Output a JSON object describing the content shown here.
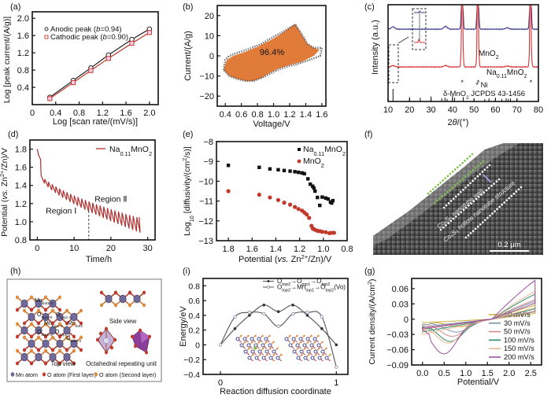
{
  "figure": {
    "panels": [
      "(a)",
      "(b)",
      "(c)",
      "(d)",
      "(e)",
      "(f)",
      "(g)",
      "(h)",
      "(i)"
    ]
  },
  "chart_data": [
    {
      "id": "a",
      "label": "(a)",
      "type": "line",
      "xlabel": "Log [scan rate/(mV/s)]",
      "ylabel": "Log [peak current/(A/g)]",
      "xlim": [
        0,
        2.15
      ],
      "ylim": [
        0,
        2.15
      ],
      "xticks": [
        "0",
        "0.4",
        "0.8",
        "1.2",
        "1.6",
        "2.0"
      ],
      "xtick_values": [
        0,
        0.4,
        0.8,
        1.2,
        1.6,
        2.0
      ],
      "yticks": [
        "0.4",
        "0.8",
        "1.2",
        "1.6",
        "2.0"
      ],
      "ytick_values": [
        0.4,
        0.8,
        1.2,
        1.6,
        2.0
      ],
      "x": [
        0.3,
        0.7,
        1.0,
        1.3,
        1.7,
        2.0
      ],
      "series": [
        {
          "name": "Anodic peak (b=0.94)",
          "legend_prefix": "Anodic peak (",
          "legend_italic": "b",
          "legend_suffix": "=0.94)",
          "marker": "circle",
          "color": "#222222",
          "values": [
            0.17,
            0.56,
            0.85,
            1.15,
            1.51,
            1.75
          ]
        },
        {
          "name": "Cathodic peak (b=0.90)",
          "legend_prefix": "Cathodic peak (",
          "legend_italic": "b",
          "legend_suffix": "=0.90)",
          "marker": "square",
          "color": "#c0392b",
          "values": [
            0.14,
            0.51,
            0.79,
            1.07,
            1.42,
            1.67
          ]
        }
      ],
      "legend": "top-left"
    },
    {
      "id": "b",
      "label": "(b)",
      "type": "area",
      "xlabel": "Voltage/V",
      "ylabel": "Current/(A/g)",
      "xlim": [
        0.3,
        1.65
      ],
      "ylim": [
        -25,
        25
      ],
      "xticks": [
        "0.4",
        "0.6",
        "0.8",
        "1.0",
        "1.2",
        "1.4",
        "1.6"
      ],
      "xtick_values": [
        0.4,
        0.6,
        0.8,
        1.0,
        1.2,
        1.4,
        1.6
      ],
      "yticks": [
        "20",
        "10",
        "0",
        "-10",
        "-20"
      ],
      "ytick_values": [
        20,
        10,
        0,
        -10,
        -20
      ],
      "annotation": "96.4%",
      "fill_color": "#e07b39",
      "outer_curve": [
        [
          0.38,
          -7
        ],
        [
          0.4,
          -2
        ],
        [
          0.45,
          0
        ],
        [
          0.55,
          1.5
        ],
        [
          0.7,
          3.5
        ],
        [
          0.85,
          6
        ],
        [
          1.0,
          9.5
        ],
        [
          1.1,
          11.5
        ],
        [
          1.2,
          14
        ],
        [
          1.27,
          15.5
        ],
        [
          1.33,
          12
        ],
        [
          1.42,
          6
        ],
        [
          1.5,
          4
        ],
        [
          1.6,
          4
        ],
        [
          1.58,
          0
        ],
        [
          1.45,
          -2
        ],
        [
          1.3,
          -4
        ],
        [
          1.15,
          -5.5
        ],
        [
          1.05,
          -7
        ],
        [
          0.95,
          -9
        ],
        [
          0.85,
          -11
        ],
        [
          0.75,
          -12.5
        ],
        [
          0.65,
          -12.5
        ],
        [
          0.55,
          -11.5
        ],
        [
          0.45,
          -10
        ],
        [
          0.38,
          -7
        ]
      ],
      "filled_curve": [
        [
          0.38,
          -7
        ],
        [
          0.42,
          -2
        ],
        [
          0.5,
          0
        ],
        [
          0.65,
          2
        ],
        [
          0.8,
          4.5
        ],
        [
          0.95,
          7.5
        ],
        [
          1.1,
          11
        ],
        [
          1.2,
          14
        ],
        [
          1.27,
          16
        ],
        [
          1.33,
          12
        ],
        [
          1.42,
          6
        ],
        [
          1.5,
          4
        ],
        [
          1.57,
          3
        ],
        [
          1.5,
          0
        ],
        [
          1.35,
          -3
        ],
        [
          1.2,
          -4.5
        ],
        [
          1.05,
          -6.5
        ],
        [
          0.95,
          -8.5
        ],
        [
          0.85,
          -11
        ],
        [
          0.75,
          -12.5
        ],
        [
          0.65,
          -12.5
        ],
        [
          0.55,
          -11.5
        ],
        [
          0.45,
          -10
        ],
        [
          0.38,
          -7
        ]
      ]
    },
    {
      "id": "c",
      "label": "(c)",
      "type": "line",
      "xlabel": "2θ/(°)",
      "ylabel": "Intensity (a.u.)",
      "xlim": [
        10,
        80
      ],
      "xticks": [
        "10",
        "20",
        "30",
        "40",
        "50",
        "60",
        "70",
        "80"
      ],
      "xtick_values": [
        10,
        20,
        30,
        40,
        50,
        60,
        70,
        80
      ],
      "series": [
        {
          "name": "MnO2",
          "label_main": "MnO",
          "label_sub": "2",
          "color": "#3a3a8c",
          "baseline": 0.62,
          "peaks": [
            [
              12.3,
              0.05
            ],
            [
              36.8,
              0.06
            ],
            [
              44.5,
              1.0
            ],
            [
              51.8,
              1.0
            ],
            [
              65.5,
              0.03
            ],
            [
              76.3,
              1.0
            ]
          ]
        },
        {
          "name": "Na0.11MnO2",
          "label_main": "Na",
          "label_sub": "0.11",
          "label_tail": "MnO",
          "label_sub2": "2",
          "color": "#d63030",
          "baseline": 0.22,
          "peaks": [
            [
              12.3,
              0.03
            ],
            [
              36.8,
              0.03
            ],
            [
              44.5,
              1.0
            ],
            [
              51.8,
              1.0
            ],
            [
              65.5,
              0.02
            ],
            [
              76.3,
              1.0
            ]
          ]
        }
      ],
      "ni_marks": [
        44.5,
        52.0,
        76.5
      ],
      "ni_label": "* Ni",
      "reference_label": "δ-MnO",
      "reference_sub": "2",
      "reference_tail": " JCPDS 43-1456",
      "reference_lines": [
        [
          12.3,
          1.0
        ],
        [
          20,
          0.35
        ],
        [
          25,
          0.3
        ],
        [
          30,
          0.4
        ],
        [
          35,
          0.25
        ],
        [
          36.5,
          0.3
        ],
        [
          37.5,
          0.2
        ],
        [
          40,
          0.45
        ],
        [
          41,
          0.3
        ],
        [
          45,
          0.35
        ],
        [
          50,
          0.25
        ],
        [
          55,
          0.2
        ],
        [
          57,
          0.25
        ],
        [
          60,
          0.3
        ],
        [
          63,
          0.2
        ],
        [
          65,
          0.25
        ],
        [
          66,
          0.2
        ],
        [
          67,
          0.25
        ],
        [
          70,
          0.2
        ]
      ]
    },
    {
      "id": "d",
      "label": "(d)",
      "type": "line",
      "xlabel": "Time/h",
      "ylabel": "Potential (vs. Zn2+/Zn)/V",
      "xlim": [
        -2,
        32
      ],
      "ylim": [
        0.8,
        1.9
      ],
      "xticks": [
        "0",
        "10",
        "20",
        "30"
      ],
      "xtick_values": [
        0,
        10,
        20,
        30
      ],
      "yticks": [
        "0.8",
        "1.0",
        "1.2",
        "1.4",
        "1.6",
        "1.8"
      ],
      "ytick_values": [
        0.8,
        1.0,
        1.2,
        1.4,
        1.6,
        1.8
      ],
      "series": [
        {
          "name": "Na0.11MnO2",
          "label_main": "Na",
          "label_sub": "0.11",
          "label_tail": "MnO",
          "label_sub2": "2",
          "color": "#b03030",
          "pulses": 27,
          "start": 1.8,
          "end_upper": 1.05,
          "end_lower": 0.88
        }
      ],
      "divider_x": 14,
      "annotations": [
        {
          "text": "Region Ⅰ",
          "x": 6.5,
          "y": 1.09
        },
        {
          "text": "Region Ⅱ",
          "x": 20,
          "y": 1.22
        }
      ]
    },
    {
      "id": "e",
      "label": "(e)",
      "type": "scatter",
      "xlabel": "Potential (vs. Zn2+/Zn)/V",
      "ylabel": "Log10 [diffusivity/(cm2/s)]",
      "xlim": [
        1.9,
        0.8
      ],
      "ylim": [
        -13,
        -8
      ],
      "xticks": [
        "1.8",
        "1.6",
        "1.4",
        "1.2",
        "1.0",
        "0.8"
      ],
      "xtick_values": [
        1.8,
        1.6,
        1.4,
        1.2,
        1.0,
        0.8
      ],
      "yticks": [
        "-8",
        "-9",
        "-10",
        "-11",
        "-12",
        "-13"
      ],
      "ytick_values": [
        -8,
        -9,
        -10,
        -11,
        -12,
        -13
      ],
      "series": [
        {
          "name": "Na0.11MnO2",
          "label_main": "Na",
          "label_sub": "0.11",
          "label_tail": "MnO",
          "label_sub2": "2",
          "marker": "square",
          "color": "#111111",
          "points": [
            [
              1.8,
              -9.2
            ],
            [
              1.54,
              -9.3
            ],
            [
              1.45,
              -9.38
            ],
            [
              1.38,
              -9.42
            ],
            [
              1.33,
              -9.46
            ],
            [
              1.28,
              -9.49
            ],
            [
              1.24,
              -9.52
            ],
            [
              1.21,
              -9.55
            ],
            [
              1.18,
              -9.58
            ],
            [
              1.16,
              -9.62
            ],
            [
              1.13,
              -9.88
            ],
            [
              1.11,
              -10.15
            ],
            [
              1.09,
              -10.25
            ],
            [
              1.08,
              -10.35
            ],
            [
              1.07,
              -10.5
            ],
            [
              1.05,
              -10.82
            ],
            [
              1.03,
              -11.22
            ],
            [
              1.01,
              -10.8
            ],
            [
              0.98,
              -10.85
            ],
            [
              0.96,
              -10.9
            ],
            [
              0.94,
              -11.05
            ],
            [
              0.93,
              -11.1
            ],
            [
              0.92,
              -10.98
            ]
          ]
        },
        {
          "name": "MnO2",
          "label_main": "MnO",
          "label_sub": "2",
          "marker": "circle",
          "color": "#c0392b",
          "points": [
            [
              1.8,
              -10.5
            ],
            [
              1.54,
              -10.68
            ],
            [
              1.45,
              -10.82
            ],
            [
              1.38,
              -10.95
            ],
            [
              1.33,
              -11.08
            ],
            [
              1.28,
              -11.18
            ],
            [
              1.24,
              -11.3
            ],
            [
              1.21,
              -11.4
            ],
            [
              1.18,
              -11.48
            ],
            [
              1.16,
              -11.58
            ],
            [
              1.14,
              -11.68
            ],
            [
              1.12,
              -11.85
            ],
            [
              1.1,
              -12.25
            ],
            [
              1.09,
              -12.38
            ],
            [
              1.08,
              -12.42
            ],
            [
              1.07,
              -12.45
            ],
            [
              1.05,
              -12.5
            ],
            [
              1.03,
              -12.52
            ],
            [
              1.01,
              -12.55
            ],
            [
              0.98,
              -12.57
            ],
            [
              0.95,
              -12.62
            ],
            [
              0.93,
              -12.6
            ],
            [
              0.91,
              -12.6
            ]
          ]
        }
      ],
      "legend": "top-right"
    },
    {
      "id": "g",
      "label": "(g)",
      "type": "line",
      "xlabel": "Potential/V",
      "ylabel": "Current density/(A/cm2)",
      "xlim": [
        -0.25,
        2.75
      ],
      "ylim": [
        -0.09,
        0.08
      ],
      "xticks": [
        "0.0",
        "0.5",
        "1.0",
        "1.5",
        "2.0",
        "2.5"
      ],
      "xtick_values": [
        0,
        0.5,
        1.0,
        1.5,
        2.0,
        2.5
      ],
      "yticks": [
        "0.06",
        "0.03",
        "0",
        "-0.03",
        "-0.06",
        "-0.09"
      ],
      "ytick_values": [
        0.06,
        0.03,
        0,
        -0.03,
        -0.06,
        -0.09
      ],
      "series": [
        {
          "name": "10 mV/s",
          "color": "#c9b23a",
          "min_at": 0.9,
          "min_val": -0.012,
          "max_val": 0.025,
          "start": -0.007
        },
        {
          "name": "30 mV/s",
          "color": "#7d92a8",
          "min_at": 0.8,
          "min_val": -0.022,
          "max_val": 0.032,
          "start": -0.015
        },
        {
          "name": "50 mV/s",
          "color": "#d48a8a",
          "min_at": 0.7,
          "min_val": -0.03,
          "max_val": 0.035,
          "start": -0.02
        },
        {
          "name": "100 mV/s",
          "color": "#2e8b6e",
          "min_at": 0.65,
          "min_val": -0.04,
          "max_val": 0.045,
          "start": -0.025
        },
        {
          "name": "150 mV/s",
          "color": "#e8b890",
          "min_at": 0.6,
          "min_val": -0.043,
          "max_val": 0.05,
          "start": -0.03
        },
        {
          "name": "200 mV/s",
          "color": "#9b4fa0",
          "min_at": 0.5,
          "min_val": -0.064,
          "max_val": 0.07,
          "start": -0.018
        }
      ],
      "legend": "bottom-right"
    },
    {
      "id": "i",
      "label": "(i)",
      "type": "line",
      "xlabel": "Reaction diffusion coordinate",
      "ylabel": "Energy/eV",
      "xlim": [
        -0.15,
        1.1
      ],
      "ylim": [
        -0.4,
        0.9
      ],
      "xticks": [
        "0",
        "1"
      ],
      "xtick_values": [
        0,
        1
      ],
      "yticks": [
        "0.8",
        "0.6",
        "0.4",
        "0.2",
        "0",
        "-0.2",
        "-0.4"
      ],
      "ytick_values": [
        0.8,
        0.6,
        0.4,
        0.2,
        0,
        -0.2,
        -0.4
      ],
      "series": [
        {
          "name": "Otop2→Otop1→Otop2",
          "marker": "filled-circle",
          "color": "#333333",
          "line_color": "#555555",
          "legend_parts": [
            [
              "O",
              ""
            ],
            [
              "top2",
              "sub"
            ],
            [
              "→O",
              ""
            ],
            [
              "top1",
              "sub"
            ],
            [
              "→O",
              ""
            ],
            [
              "top2",
              "sub"
            ]
          ],
          "points": [
            [
              0,
              0
            ],
            [
              0.125,
              0.22
            ],
            [
              0.25,
              0.4
            ],
            [
              0.375,
              0.54
            ],
            [
              0.5,
              0.45
            ],
            [
              0.625,
              0.54
            ],
            [
              0.75,
              0.4
            ],
            [
              0.875,
              0.22
            ],
            [
              1.0,
              0
            ]
          ]
        },
        {
          "name": "Otop2→Mntop1→Otop2(Vo)",
          "marker": "open-circle",
          "color": "#9b7ba8",
          "line_color": "#555555",
          "legend_parts": [
            [
              "O",
              ""
            ],
            [
              "top2",
              "sub"
            ],
            [
              "→Mn",
              ""
            ],
            [
              "top1",
              "sub"
            ],
            [
              "→O",
              ""
            ],
            [
              "top2",
              "sub"
            ],
            [
              "(Vo)",
              ""
            ]
          ],
          "points": [
            [
              0,
              0
            ],
            [
              0.125,
              0.38
            ],
            [
              0.25,
              0.44
            ],
            [
              0.375,
              0.42
            ],
            [
              0.5,
              0.25
            ],
            [
              0.625,
              0.42
            ],
            [
              0.75,
              0.44
            ],
            [
              0.875,
              0.38
            ],
            [
              1.0,
              -0.3
            ]
          ]
        }
      ],
      "legend": "top-right"
    }
  ],
  "image_f": {
    "label": "(f)",
    "annotation_wall": "Co₉S₈ nanotube wall",
    "annotation_hollow": "Co₉S₈ hollow nanotube structure",
    "scale_bar": "0.2 μm"
  },
  "diagram_h": {
    "label": "(h)",
    "top_view": "Top view",
    "side_view": "Side view",
    "octahedral": "Octahedral repeating unit",
    "atom_labels": [
      "Mn",
      "O",
      "O",
      "Mn",
      "Mn",
      "O",
      "O",
      "O"
    ],
    "atom_subs": [
      "bot1-2",
      "top2-0",
      "top2-1",
      "top1-0",
      "bot1",
      "top1-0",
      "top1-1",
      "bot2-2"
    ],
    "legend": [
      {
        "text": "Mn atom",
        "color": "#6f6a9a"
      },
      {
        "text": "O atom (First layer)",
        "color": "#c0392b"
      },
      {
        "text": "O atom (Second layer)",
        "color": "#e08a3c"
      }
    ]
  },
  "colors": {
    "mn": "#6f6a9a",
    "o1": "#c0392b",
    "o2": "#e08a3c",
    "axis": "#111111"
  }
}
